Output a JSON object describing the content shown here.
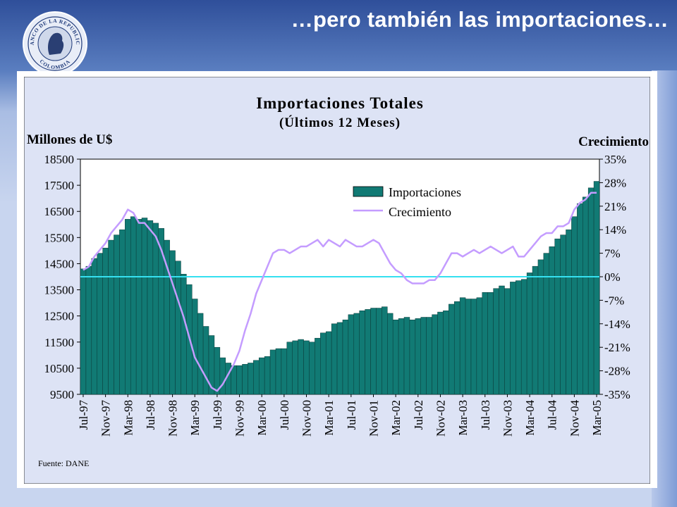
{
  "slide": {
    "title": "…pero también las importaciones…",
    "logo_text_top": "BANCO DE LA REPUBLICA",
    "logo_text_bottom": "COLOMBIA"
  },
  "colors": {
    "bar_fill": "#117a74",
    "growth_line": "#c49cff",
    "zero_line": "#35e0f0",
    "plot_bg": "#ffffff",
    "chart_bg": "#dde3f5"
  },
  "chart_data": {
    "type": "bar",
    "title": "Importaciones Totales",
    "subtitle": "(Últimos 12 Meses)",
    "ylabel": "Millones de U$",
    "y2label": "Crecimiento",
    "ylim": [
      9500,
      18500
    ],
    "y2lim": [
      -35,
      35
    ],
    "yticks": [
      18500,
      17500,
      16500,
      15500,
      14500,
      13500,
      12500,
      11500,
      10500,
      9500
    ],
    "y2ticks": [
      "35%",
      "28%",
      "21%",
      "14%",
      "7%",
      "0%",
      "-7%",
      "-14%",
      "-21%",
      "-28%",
      "-35%"
    ],
    "y2tick_values": [
      35,
      28,
      21,
      14,
      7,
      0,
      -7,
      -14,
      -21,
      -28,
      -35
    ],
    "xtick_labels": [
      "Jul-97",
      "Nov-97",
      "Mar-98",
      "Jul-98",
      "Nov-98",
      "Mar-99",
      "Jul-99",
      "Nov-99",
      "Mar-00",
      "Jul-00",
      "Nov-00",
      "Mar-01",
      "Jul-01",
      "Nov-01",
      "Mar-02",
      "Jul-02",
      "Nov-02",
      "Mar-03",
      "Jul-03",
      "Nov-03",
      "Mar-04",
      "Jul-04",
      "Nov-04",
      "Mar-05"
    ],
    "source": "Fuente: DANE",
    "legend": {
      "placement": "top-center",
      "entries": [
        "Importaciones",
        "Crecimiento"
      ]
    },
    "series": [
      {
        "name": "Importaciones",
        "type": "bar",
        "axis": "left",
        "values": [
          14300,
          14400,
          14700,
          14900,
          15100,
          15400,
          15600,
          15800,
          16200,
          16300,
          16200,
          16250,
          16150,
          16050,
          15850,
          15400,
          15000,
          14600,
          14100,
          13700,
          13150,
          12600,
          12100,
          11750,
          11300,
          10900,
          10700,
          10600,
          10600,
          10650,
          10700,
          10800,
          10900,
          10950,
          11200,
          11250,
          11250,
          11500,
          11550,
          11600,
          11550,
          11500,
          11650,
          11850,
          11900,
          12200,
          12250,
          12350,
          12550,
          12600,
          12700,
          12750,
          12800,
          12800,
          12850,
          12600,
          12350,
          12400,
          12450,
          12350,
          12400,
          12450,
          12450,
          12550,
          12650,
          12700,
          12950,
          13050,
          13200,
          13150,
          13150,
          13200,
          13400,
          13400,
          13550,
          13650,
          13550,
          13800,
          13850,
          13900,
          14150,
          14400,
          14650,
          14900,
          15150,
          15450,
          15600,
          15800,
          16300,
          16800,
          17050,
          17400,
          17650
        ]
      },
      {
        "name": "Crecimiento",
        "type": "line",
        "axis": "right",
        "values": [
          2,
          3,
          6,
          8,
          10,
          13,
          15,
          17,
          20,
          19,
          16,
          16,
          14,
          12,
          8,
          3,
          -2,
          -7,
          -12,
          -18,
          -24,
          -27,
          -30,
          -33,
          -34,
          -32,
          -29,
          -26,
          -22,
          -16,
          -11,
          -5,
          -1,
          3,
          7,
          8,
          8,
          7,
          8,
          9,
          9,
          10,
          11,
          9,
          11,
          10,
          9,
          11,
          10,
          9,
          9,
          10,
          11,
          10,
          7,
          4,
          2,
          1,
          -1,
          -2,
          -2,
          -2,
          -1,
          -1,
          1,
          4,
          7,
          7,
          6,
          7,
          8,
          7,
          8,
          9,
          8,
          7,
          8,
          9,
          6,
          6,
          8,
          10,
          12,
          13,
          13,
          15,
          15,
          16,
          20,
          22,
          23,
          25,
          25
        ]
      }
    ]
  }
}
